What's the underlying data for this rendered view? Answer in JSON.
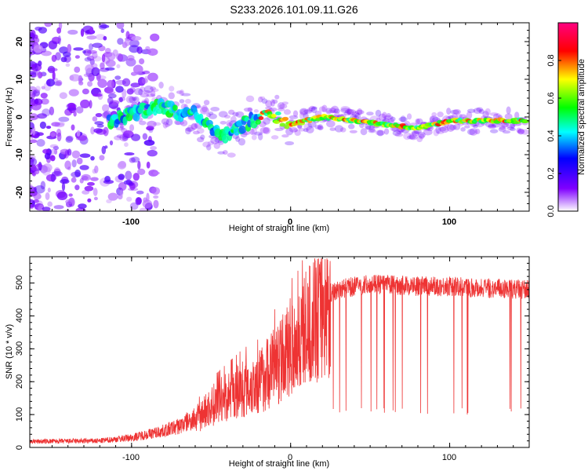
{
  "title": "S233.2026.101.09.11.G26",
  "chart_data": [
    {
      "type": "heatmap",
      "name": "spectrogram",
      "xlabel": "Height of straight line (km)",
      "ylabel": "Frequency (Hz)",
      "xlim": [
        -164,
        150
      ],
      "ylim": [
        -25,
        25
      ],
      "x_ticks": [
        -100,
        0,
        100
      ],
      "y_ticks": [
        20,
        10,
        0,
        -10,
        -20
      ],
      "ridge": {
        "x": [
          -114,
          -100,
          -90,
          -80,
          -70,
          -60,
          -50,
          -40,
          -30,
          -20,
          -10,
          0,
          20,
          40,
          60,
          80,
          90,
          100,
          120,
          145
        ],
        "frequency_hz": [
          -1,
          1,
          2,
          3,
          1,
          1,
          -3,
          -5,
          -2,
          0,
          0,
          -2,
          0,
          -1,
          -2,
          -3,
          -2,
          -1,
          -1,
          -1
        ]
      },
      "colorbar": {
        "label": "Normalized spectral amplitude",
        "range": [
          0,
          1
        ],
        "ticks": [
          "0.0",
          "0.2",
          "0.4",
          "0.6",
          "0.8"
        ],
        "tick_values": [
          0,
          0.2,
          0.4,
          0.6,
          0.8
        ]
      }
    },
    {
      "type": "line",
      "name": "snr",
      "xlabel": "Height of straight line (km)",
      "ylabel": "SNR (10 * v/v)",
      "xlim": [
        -164,
        150
      ],
      "ylim": [
        0,
        580
      ],
      "x_ticks": [
        -100,
        0,
        100
      ],
      "y_ticks": [
        0,
        100,
        200,
        300,
        400,
        500
      ],
      "color": "#ee3333",
      "envelope": {
        "x": [
          -164,
          -120,
          -100,
          -90,
          -80,
          -70,
          -60,
          -50,
          -40,
          -30,
          -20,
          -15,
          -10,
          -5,
          0,
          5,
          10,
          15,
          20,
          25,
          30,
          40,
          50,
          60,
          80,
          100,
          120,
          150
        ],
        "snr": [
          18,
          20,
          30,
          40,
          50,
          65,
          90,
          140,
          170,
          200,
          220,
          250,
          280,
          300,
          340,
          360,
          400,
          430,
          450,
          470,
          480,
          490,
          495,
          495,
          490,
          490,
          485,
          480
        ]
      },
      "dropouts_below_x": 25,
      "dropout_floor": 100
    }
  ]
}
